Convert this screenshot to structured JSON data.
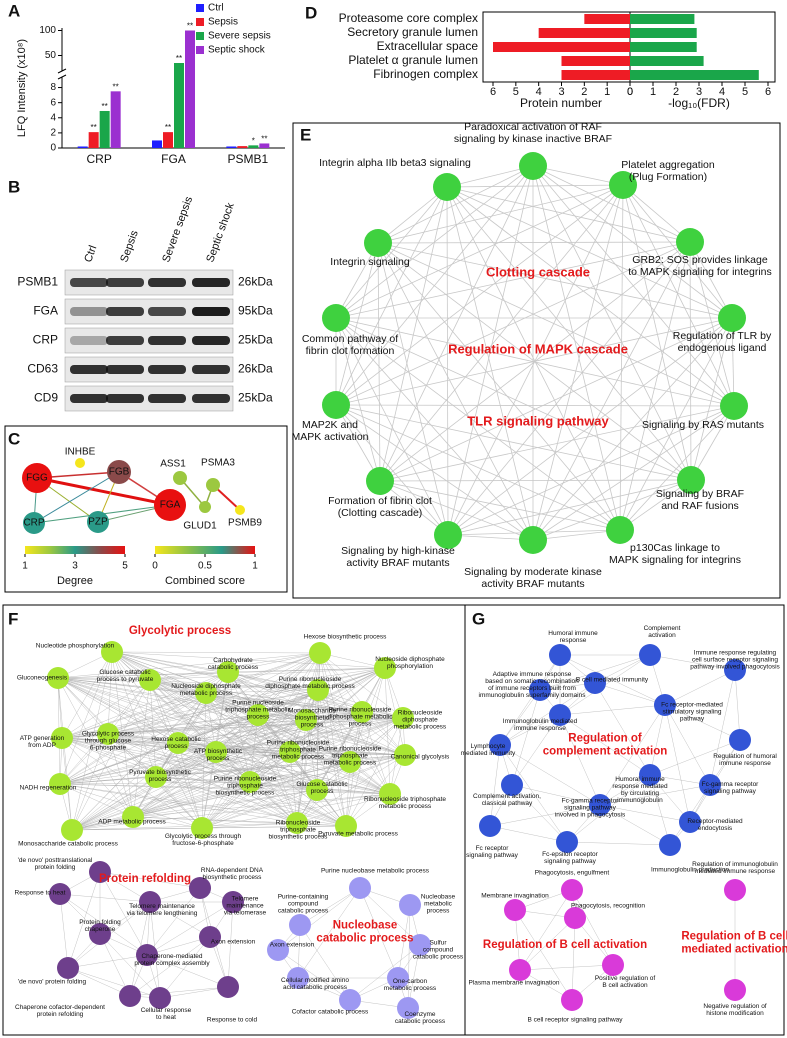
{
  "panel_labels": [
    "A",
    "B",
    "C",
    "D",
    "E",
    "F",
    "G"
  ],
  "chart_data": [
    {
      "type": "bar",
      "ylabel": "LFQ Intensity (x10⁸)",
      "categories": [
        "CRP",
        "FGA",
        "PSMB1"
      ],
      "series": [
        {
          "name": "Ctrl",
          "color": "#1f1fff",
          "values": [
            0.2,
            1.0,
            0.2
          ],
          "annotations": [
            null,
            null,
            null
          ]
        },
        {
          "name": "Sepsis",
          "color": "#ee1c25",
          "values": [
            2.1,
            2.1,
            0.25
          ],
          "annotations": [
            "**",
            "**",
            null
          ]
        },
        {
          "name": "Severe sepsis",
          "color": "#1aa64a",
          "values": [
            4.9,
            35,
            0.35
          ],
          "annotations": [
            "**",
            "**",
            "*"
          ]
        },
        {
          "name": "Septic shock",
          "color": "#9b30d0",
          "values": [
            7.5,
            100,
            0.6
          ],
          "annotations": [
            "**",
            "**",
            "**"
          ]
        }
      ],
      "ylim": [
        0,
        105
      ],
      "axis_break": [
        9,
        25
      ],
      "yticks": [
        0,
        2,
        4,
        6,
        8,
        50,
        100
      ]
    },
    {
      "type": "diverging_bar",
      "categories": [
        "Proteasome core complex",
        "Secretory granule lumen",
        "Extracellular space",
        "Platelet α granule lumen",
        "Fibrinogen complex"
      ],
      "series": [
        {
          "color": "#ee1c25",
          "values": [
            2,
            4,
            6,
            3,
            3
          ],
          "axis": "x"
        },
        {
          "color": "#1aa64a",
          "values": [
            2.8,
            2.9,
            2.9,
            3.2,
            5.6
          ],
          "axis": "x2"
        }
      ],
      "xlabel": "Protein number",
      "x2label": "-log₁₀(FDR)",
      "xlim": [
        6,
        0
      ],
      "xticks": [
        6,
        5,
        4,
        3,
        2,
        1,
        0
      ],
      "x2lim": [
        0,
        6
      ],
      "x2ticks": [
        0,
        1,
        2,
        3,
        4,
        5,
        6
      ]
    }
  ],
  "blot": {
    "columns": [
      "Ctrl",
      "Sepsis",
      "Severe sepsis",
      "Septic shock"
    ],
    "rows": [
      {
        "name": "PSMB1",
        "kda": "26kDa"
      },
      {
        "name": "FGA",
        "kda": "95kDa"
      },
      {
        "name": "CRP",
        "kda": "25kDa"
      },
      {
        "name": "CD63",
        "kda": "26kDa"
      },
      {
        "name": "CD9",
        "kda": "25kDa"
      }
    ]
  },
  "network_c": {
    "nodes": [
      {
        "label": "FGG",
        "degree": 5
      },
      {
        "label": "INHBE",
        "degree": 1
      },
      {
        "label": "FGB",
        "degree": 4
      },
      {
        "label": "FGA",
        "degree": 5
      },
      {
        "label": "CRP",
        "degree": 3
      },
      {
        "label": "PZP",
        "degree": 3
      },
      {
        "label": "ASS1",
        "degree": 2
      },
      {
        "label": "PSMA3",
        "degree": 2
      },
      {
        "label": "GLUD1",
        "degree": 2
      },
      {
        "label": "PSMB9",
        "degree": 1
      }
    ],
    "degree_title": "Degree",
    "degree_lim": [
      1,
      5
    ],
    "degree_ticks": [
      1,
      3,
      5
    ],
    "degree_colors": [
      "#f5e61c",
      "#9cc840",
      "#2a9a88",
      "#8a4a4a",
      "#e81010"
    ],
    "score_title": "Combined score",
    "score_lim": [
      0,
      1
    ],
    "score_ticks": [
      0,
      0.5,
      1
    ],
    "score_colors": [
      "#f5e61c",
      "#8cc048",
      "#2a9a88",
      "#e81010"
    ]
  },
  "network_e": {
    "node_color": "#3fd13f",
    "center_labels": [
      "Clotting cascade",
      "Regulation of MAPK cascade",
      "TLR signaling pathway"
    ],
    "nodes": [
      [
        "Paradoxical activation of RAF",
        "signaling by kinase inactive BRAF"
      ],
      [
        "Platelet aggregation",
        "(Plug Formation)"
      ],
      [
        "GRB2: SOS provides linkage",
        "to MAPK signaling for integrins"
      ],
      [
        "Regulation of TLR by",
        "endogenous ligand"
      ],
      [
        "Signaling by RAS mutants"
      ],
      [
        "Signaling by BRAF",
        "and RAF fusions"
      ],
      [
        "p130Cas linkage to",
        "MAPK signaling for integrins"
      ],
      [
        "Signaling by moderate kinase",
        "activity BRAF mutants"
      ],
      [
        "Signaling by high-kinase",
        "activity BRAF mutants"
      ],
      [
        "Formation of fibrin clot",
        "(Clotting cascade)"
      ],
      [
        "MAP2K and",
        "MAPK activation"
      ],
      [
        "Common pathway of",
        "fibrin clot formation"
      ],
      [
        "Integrin signaling"
      ],
      [
        "Integrin alpha IIb beta3 signaling"
      ]
    ]
  },
  "network_f": {
    "clusters": [
      {
        "title": [
          "Glycolytic process"
        ],
        "color": "#a8e632",
        "nodes": [
          [
            "Nucleotide phosphorylation"
          ],
          [
            "Hexose biosynthetic process"
          ],
          [
            "Carbohydrate",
            "catabolic process"
          ],
          [
            "Glucose catabolic",
            "process to pyruvate"
          ],
          [
            "Nucleoside diphosphate",
            "phosphorylation"
          ],
          [
            "Gluconeogenesis"
          ],
          [
            "Purine ribonucleoside",
            "diphosphate metabolic process"
          ],
          [
            "Nucleoside diphosphate",
            "metabolic process"
          ],
          [
            "Purine nucleoside",
            "triphosphate metabolic",
            "process"
          ],
          [
            "Monosaccharide",
            "biosynthetic",
            "process"
          ],
          [
            "Purine ribonucleoside",
            "diphosphate metabolic",
            "process"
          ],
          [
            "Ribonucleoside",
            "diphosphate",
            "metabolic process"
          ],
          [
            "ATP generation",
            "from ADP"
          ],
          [
            "Glycolytic process",
            "through glucose",
            "6-phosphate"
          ],
          [
            "Hexose catabolic",
            "process"
          ],
          [
            "ATP biosynthetic",
            "process"
          ],
          [
            "Purine ribonucleoside",
            "triphosphate",
            "metabolic process"
          ],
          [
            "Purine ribonucleoside",
            "triphosphate",
            "metabolic process"
          ],
          [
            "Canonical glycolysis"
          ],
          [
            "NADH regeneration"
          ],
          [
            "Pyruvate biosynthetic",
            "process"
          ],
          [
            "Purine ribonucleoside",
            "triphosphate",
            "biosynthetic process"
          ],
          [
            "Glucose catabolic",
            "process"
          ],
          [
            "Ribonucleoside triphosphate",
            "metabolic process"
          ],
          [
            "ADP metabolic process"
          ],
          [
            "Monosaccharide catabolic process"
          ],
          [
            "Glycolytic process through",
            "fructose-6-phosphate"
          ],
          [
            "Ribonucleoside",
            "triphosphate",
            "biosynthetic process"
          ],
          [
            "Pyruvate metabolic process"
          ]
        ]
      },
      {
        "title": [
          "Protein refolding"
        ],
        "color": "#6e3f8c",
        "nodes": [
          [
            "'de novo' posttranslational",
            "protein folding"
          ],
          [
            "RNA-dependent DNA",
            "biosynthetic process"
          ],
          [
            "Telomere",
            "maintenance",
            "via telomerase"
          ],
          [
            "Response to heat"
          ],
          [
            "Telomere maintenance",
            "via telomere lengthening"
          ],
          [
            "Axon extension"
          ],
          [
            "Protein folding",
            "chaperone"
          ],
          [
            "Chaperone-mediated",
            "protein complex assembly"
          ],
          [
            "'de novo' protein folding"
          ],
          [
            "Chaperone cofactor-dependent",
            "protein refolding"
          ],
          [
            "Cellular response",
            "to heat"
          ],
          [
            "Response to cold"
          ]
        ]
      },
      {
        "title": [
          "Nucleobase",
          "catabolic process"
        ],
        "color": "#9d98f2",
        "nodes": [
          [
            "Purine nucleobase metabolic process"
          ],
          [
            "Purine-containing",
            "compound",
            "catabolic process"
          ],
          [
            "Nucleobase",
            "metabolic",
            "process"
          ],
          [
            "Axon extension"
          ],
          [
            "Sulfur",
            "compound",
            "catabolic process"
          ],
          [
            "Cellular modified amino",
            "acid catabolic process"
          ],
          [
            "One-carbon",
            "metabolic process"
          ],
          [
            "Cofactor catabolic process"
          ],
          [
            "Coenzyme",
            "catabolic process"
          ]
        ]
      }
    ]
  },
  "network_g": {
    "clusters": [
      {
        "title": [
          "Regulation of",
          "complement activation"
        ],
        "color": "#3355d6",
        "nodes": [
          [
            "Humoral immune",
            "response"
          ],
          [
            "Complement",
            "activation"
          ],
          [
            "Adaptive immune response",
            "based on somatic recombination",
            "of immune receptors built from",
            "immunoglobulin superfamily domains"
          ],
          [
            "B cell mediated immunity"
          ],
          [
            "Immune response regulating",
            "cell surface receptor signaling",
            "pathway involved phagocytosis"
          ],
          [
            "Immunoglobulin mediated",
            "immune response"
          ],
          [
            "Fc receptor-mediated",
            "stimulatory signaling",
            "pathway"
          ],
          [
            "Lymphocyte",
            "mediated immunity"
          ],
          [
            "Regulation of humoral",
            "immune response"
          ],
          [
            "Complement activation,",
            "classical pathway"
          ],
          [
            "Humoral immune",
            "response mediated",
            "by circulating",
            "immunoglobulin"
          ],
          [
            "Fc-gamma receptor",
            "signaling pathway"
          ],
          [
            "Fc-gamma receptor",
            "signaling pathway",
            "involved in phagocytosis"
          ],
          [
            "Receptor-mediated",
            "endocytosis"
          ],
          [
            "Fc receptor",
            "signaling pathway"
          ],
          [
            "Fc-epsilon receptor",
            "signaling pathway"
          ],
          [
            "Immunoglobulin production"
          ]
        ]
      },
      {
        "title": [
          "Regulation of B cell activation"
        ],
        "color": "#d93ad9",
        "nodes": [
          [
            "Phagocytosis, engulfment"
          ],
          [
            "Membrane invagination"
          ],
          [
            "Phagocytosis, recognition"
          ],
          [
            "Plasma membrane invagination"
          ],
          [
            "Positive regulation of",
            "B cell activation"
          ],
          [
            "B cell receptor signaling pathway"
          ]
        ]
      },
      {
        "title": [
          "Regulation of B cell",
          "mediated activation"
        ],
        "color": "#d93ad9",
        "nodes": [
          [
            "Regulation of immunoglobulin",
            "mediated immune response"
          ],
          [
            "Negative regulation of",
            "histone modification"
          ]
        ]
      }
    ]
  }
}
